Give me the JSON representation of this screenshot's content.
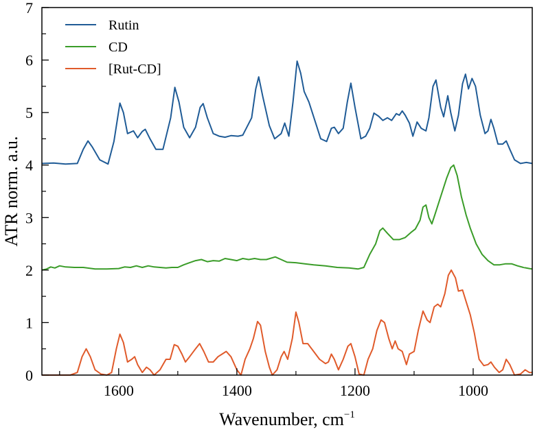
{
  "chart_data": {
    "type": "line",
    "title": "",
    "xlabel": "Wavenumber, cm",
    "xlabel_superscript": "−1",
    "ylabel": "ATR norm. a.u.",
    "xlim": [
      1730,
      900
    ],
    "ylim": [
      0,
      7
    ],
    "x_reversed": true,
    "x_major_ticks": [
      1600,
      1400,
      1200,
      1000
    ],
    "x_major_tick_labels": [
      "1600",
      "1400",
      "1200",
      "1000"
    ],
    "x_minor_ticks": [
      1700,
      1500,
      1300,
      1100,
      900
    ],
    "y_major_ticks": [
      0,
      1,
      2,
      3,
      4,
      5,
      6,
      7
    ],
    "y_major_tick_labels": [
      "0",
      "1",
      "2",
      "3",
      "4",
      "5",
      "6",
      "7"
    ],
    "grid": false,
    "legend_position": "top-left",
    "series": [
      {
        "name": "Rutin",
        "color": "#1f5b96",
        "points": [
          [
            1730,
            4.03
          ],
          [
            1710,
            4.04
          ],
          [
            1690,
            4.02
          ],
          [
            1670,
            4.03
          ],
          [
            1660,
            4.3
          ],
          [
            1652,
            4.46
          ],
          [
            1645,
            4.35
          ],
          [
            1632,
            4.1
          ],
          [
            1618,
            4.02
          ],
          [
            1608,
            4.45
          ],
          [
            1598,
            5.18
          ],
          [
            1592,
            5.0
          ],
          [
            1585,
            4.6
          ],
          [
            1575,
            4.65
          ],
          [
            1568,
            4.52
          ],
          [
            1560,
            4.64
          ],
          [
            1555,
            4.68
          ],
          [
            1547,
            4.5
          ],
          [
            1537,
            4.3
          ],
          [
            1525,
            4.3
          ],
          [
            1512,
            4.9
          ],
          [
            1505,
            5.48
          ],
          [
            1498,
            5.2
          ],
          [
            1490,
            4.72
          ],
          [
            1480,
            4.52
          ],
          [
            1470,
            4.72
          ],
          [
            1462,
            5.1
          ],
          [
            1457,
            5.17
          ],
          [
            1450,
            4.9
          ],
          [
            1440,
            4.6
          ],
          [
            1430,
            4.55
          ],
          [
            1420,
            4.53
          ],
          [
            1410,
            4.56
          ],
          [
            1398,
            4.55
          ],
          [
            1390,
            4.57
          ],
          [
            1375,
            4.9
          ],
          [
            1368,
            5.45
          ],
          [
            1363,
            5.68
          ],
          [
            1356,
            5.3
          ],
          [
            1345,
            4.75
          ],
          [
            1336,
            4.5
          ],
          [
            1325,
            4.6
          ],
          [
            1319,
            4.8
          ],
          [
            1312,
            4.55
          ],
          [
            1305,
            5.2
          ],
          [
            1298,
            5.98
          ],
          [
            1292,
            5.75
          ],
          [
            1286,
            5.4
          ],
          [
            1278,
            5.2
          ],
          [
            1268,
            4.85
          ],
          [
            1258,
            4.5
          ],
          [
            1248,
            4.45
          ],
          [
            1240,
            4.7
          ],
          [
            1235,
            4.72
          ],
          [
            1228,
            4.6
          ],
          [
            1220,
            4.7
          ],
          [
            1213,
            5.2
          ],
          [
            1207,
            5.56
          ],
          [
            1200,
            5.1
          ],
          [
            1190,
            4.5
          ],
          [
            1182,
            4.55
          ],
          [
            1175,
            4.7
          ],
          [
            1168,
            4.99
          ],
          [
            1160,
            4.93
          ],
          [
            1153,
            4.85
          ],
          [
            1145,
            4.9
          ],
          [
            1138,
            4.85
          ],
          [
            1130,
            4.98
          ],
          [
            1125,
            4.95
          ],
          [
            1120,
            5.03
          ],
          [
            1115,
            4.95
          ],
          [
            1108,
            4.8
          ],
          [
            1102,
            4.55
          ],
          [
            1095,
            4.82
          ],
          [
            1088,
            4.7
          ],
          [
            1080,
            4.65
          ],
          [
            1075,
            4.9
          ],
          [
            1068,
            5.5
          ],
          [
            1063,
            5.62
          ],
          [
            1055,
            5.1
          ],
          [
            1050,
            4.92
          ],
          [
            1043,
            5.32
          ],
          [
            1038,
            5.0
          ],
          [
            1031,
            4.65
          ],
          [
            1025,
            4.95
          ],
          [
            1018,
            5.55
          ],
          [
            1013,
            5.73
          ],
          [
            1008,
            5.45
          ],
          [
            1002,
            5.65
          ],
          [
            996,
            5.5
          ],
          [
            988,
            4.95
          ],
          [
            980,
            4.6
          ],
          [
            975,
            4.65
          ],
          [
            970,
            4.87
          ],
          [
            965,
            4.7
          ],
          [
            958,
            4.4
          ],
          [
            950,
            4.4
          ],
          [
            944,
            4.46
          ],
          [
            938,
            4.3
          ],
          [
            930,
            4.1
          ],
          [
            920,
            4.03
          ],
          [
            910,
            4.05
          ],
          [
            900,
            4.03
          ]
        ]
      },
      {
        "name": "CD",
        "color": "#3a9c28",
        "points": [
          [
            1730,
            2.0
          ],
          [
            1722,
            2.02
          ],
          [
            1715,
            2.06
          ],
          [
            1708,
            2.04
          ],
          [
            1700,
            2.08
          ],
          [
            1690,
            2.06
          ],
          [
            1675,
            2.05
          ],
          [
            1660,
            2.05
          ],
          [
            1640,
            2.02
          ],
          [
            1620,
            2.02
          ],
          [
            1600,
            2.03
          ],
          [
            1590,
            2.06
          ],
          [
            1580,
            2.05
          ],
          [
            1570,
            2.08
          ],
          [
            1560,
            2.05
          ],
          [
            1550,
            2.08
          ],
          [
            1540,
            2.06
          ],
          [
            1530,
            2.05
          ],
          [
            1520,
            2.04
          ],
          [
            1510,
            2.05
          ],
          [
            1500,
            2.05
          ],
          [
            1490,
            2.1
          ],
          [
            1480,
            2.14
          ],
          [
            1470,
            2.18
          ],
          [
            1460,
            2.2
          ],
          [
            1450,
            2.16
          ],
          [
            1440,
            2.18
          ],
          [
            1430,
            2.17
          ],
          [
            1420,
            2.22
          ],
          [
            1410,
            2.2
          ],
          [
            1400,
            2.18
          ],
          [
            1390,
            2.22
          ],
          [
            1380,
            2.2
          ],
          [
            1370,
            2.22
          ],
          [
            1360,
            2.2
          ],
          [
            1350,
            2.2
          ],
          [
            1335,
            2.25
          ],
          [
            1325,
            2.2
          ],
          [
            1315,
            2.15
          ],
          [
            1300,
            2.14
          ],
          [
            1285,
            2.12
          ],
          [
            1270,
            2.1
          ],
          [
            1250,
            2.08
          ],
          [
            1230,
            2.05
          ],
          [
            1210,
            2.04
          ],
          [
            1195,
            2.02
          ],
          [
            1185,
            2.05
          ],
          [
            1175,
            2.3
          ],
          [
            1165,
            2.5
          ],
          [
            1158,
            2.75
          ],
          [
            1153,
            2.8
          ],
          [
            1145,
            2.7
          ],
          [
            1135,
            2.58
          ],
          [
            1125,
            2.58
          ],
          [
            1115,
            2.62
          ],
          [
            1105,
            2.72
          ],
          [
            1098,
            2.78
          ],
          [
            1090,
            2.95
          ],
          [
            1085,
            3.2
          ],
          [
            1080,
            3.24
          ],
          [
            1075,
            3.0
          ],
          [
            1070,
            2.88
          ],
          [
            1065,
            3.05
          ],
          [
            1055,
            3.4
          ],
          [
            1045,
            3.75
          ],
          [
            1038,
            3.95
          ],
          [
            1033,
            4.0
          ],
          [
            1027,
            3.8
          ],
          [
            1020,
            3.4
          ],
          [
            1012,
            3.05
          ],
          [
            1005,
            2.8
          ],
          [
            995,
            2.5
          ],
          [
            985,
            2.3
          ],
          [
            975,
            2.18
          ],
          [
            965,
            2.1
          ],
          [
            955,
            2.1
          ],
          [
            945,
            2.12
          ],
          [
            935,
            2.12
          ],
          [
            925,
            2.08
          ],
          [
            915,
            2.05
          ],
          [
            905,
            2.03
          ],
          [
            900,
            2.02
          ]
        ]
      },
      {
        "name": "[Rut-CD]",
        "color": "#e05a2a",
        "points": [
          [
            1730,
            0.0
          ],
          [
            1700,
            0.0
          ],
          [
            1682,
            0.0
          ],
          [
            1670,
            0.05
          ],
          [
            1662,
            0.35
          ],
          [
            1655,
            0.5
          ],
          [
            1648,
            0.35
          ],
          [
            1640,
            0.1
          ],
          [
            1630,
            0.02
          ],
          [
            1620,
            0.0
          ],
          [
            1612,
            0.05
          ],
          [
            1604,
            0.5
          ],
          [
            1598,
            0.78
          ],
          [
            1592,
            0.62
          ],
          [
            1585,
            0.25
          ],
          [
            1578,
            0.3
          ],
          [
            1573,
            0.35
          ],
          [
            1568,
            0.2
          ],
          [
            1560,
            0.05
          ],
          [
            1553,
            0.15
          ],
          [
            1547,
            0.1
          ],
          [
            1540,
            0.0
          ],
          [
            1530,
            0.1
          ],
          [
            1520,
            0.3
          ],
          [
            1513,
            0.3
          ],
          [
            1506,
            0.58
          ],
          [
            1500,
            0.55
          ],
          [
            1493,
            0.4
          ],
          [
            1487,
            0.25
          ],
          [
            1480,
            0.35
          ],
          [
            1470,
            0.5
          ],
          [
            1463,
            0.6
          ],
          [
            1456,
            0.45
          ],
          [
            1448,
            0.25
          ],
          [
            1440,
            0.25
          ],
          [
            1432,
            0.35
          ],
          [
            1425,
            0.4
          ],
          [
            1418,
            0.45
          ],
          [
            1410,
            0.35
          ],
          [
            1400,
            0.1
          ],
          [
            1393,
            0.0
          ],
          [
            1386,
            0.3
          ],
          [
            1378,
            0.5
          ],
          [
            1372,
            0.7
          ],
          [
            1365,
            1.02
          ],
          [
            1360,
            0.95
          ],
          [
            1352,
            0.45
          ],
          [
            1345,
            0.15
          ],
          [
            1340,
            0.0
          ],
          [
            1332,
            0.1
          ],
          [
            1325,
            0.35
          ],
          [
            1320,
            0.45
          ],
          [
            1314,
            0.3
          ],
          [
            1306,
            0.7
          ],
          [
            1300,
            1.2
          ],
          [
            1295,
            1.0
          ],
          [
            1288,
            0.6
          ],
          [
            1280,
            0.6
          ],
          [
            1270,
            0.45
          ],
          [
            1260,
            0.3
          ],
          [
            1250,
            0.22
          ],
          [
            1245,
            0.25
          ],
          [
            1240,
            0.4
          ],
          [
            1235,
            0.3
          ],
          [
            1228,
            0.1
          ],
          [
            1220,
            0.3
          ],
          [
            1212,
            0.55
          ],
          [
            1207,
            0.6
          ],
          [
            1200,
            0.35
          ],
          [
            1193,
            0.02
          ],
          [
            1185,
            0.0
          ],
          [
            1178,
            0.3
          ],
          [
            1170,
            0.5
          ],
          [
            1163,
            0.85
          ],
          [
            1156,
            1.05
          ],
          [
            1150,
            1.0
          ],
          [
            1143,
            0.7
          ],
          [
            1137,
            0.5
          ],
          [
            1132,
            0.65
          ],
          [
            1127,
            0.5
          ],
          [
            1120,
            0.45
          ],
          [
            1113,
            0.2
          ],
          [
            1108,
            0.4
          ],
          [
            1100,
            0.45
          ],
          [
            1093,
            0.85
          ],
          [
            1085,
            1.22
          ],
          [
            1078,
            1.05
          ],
          [
            1073,
            1.0
          ],
          [
            1066,
            1.3
          ],
          [
            1060,
            1.35
          ],
          [
            1055,
            1.3
          ],
          [
            1048,
            1.55
          ],
          [
            1042,
            1.9
          ],
          [
            1037,
            2.0
          ],
          [
            1030,
            1.85
          ],
          [
            1025,
            1.6
          ],
          [
            1018,
            1.62
          ],
          [
            1012,
            1.4
          ],
          [
            1005,
            1.15
          ],
          [
            998,
            0.8
          ],
          [
            990,
            0.3
          ],
          [
            982,
            0.18
          ],
          [
            975,
            0.2
          ],
          [
            970,
            0.25
          ],
          [
            964,
            0.15
          ],
          [
            956,
            0.05
          ],
          [
            950,
            0.1
          ],
          [
            944,
            0.3
          ],
          [
            938,
            0.2
          ],
          [
            930,
            0.0
          ],
          [
            920,
            0.02
          ],
          [
            912,
            0.1
          ],
          [
            905,
            0.05
          ],
          [
            900,
            0.05
          ]
        ]
      }
    ]
  }
}
